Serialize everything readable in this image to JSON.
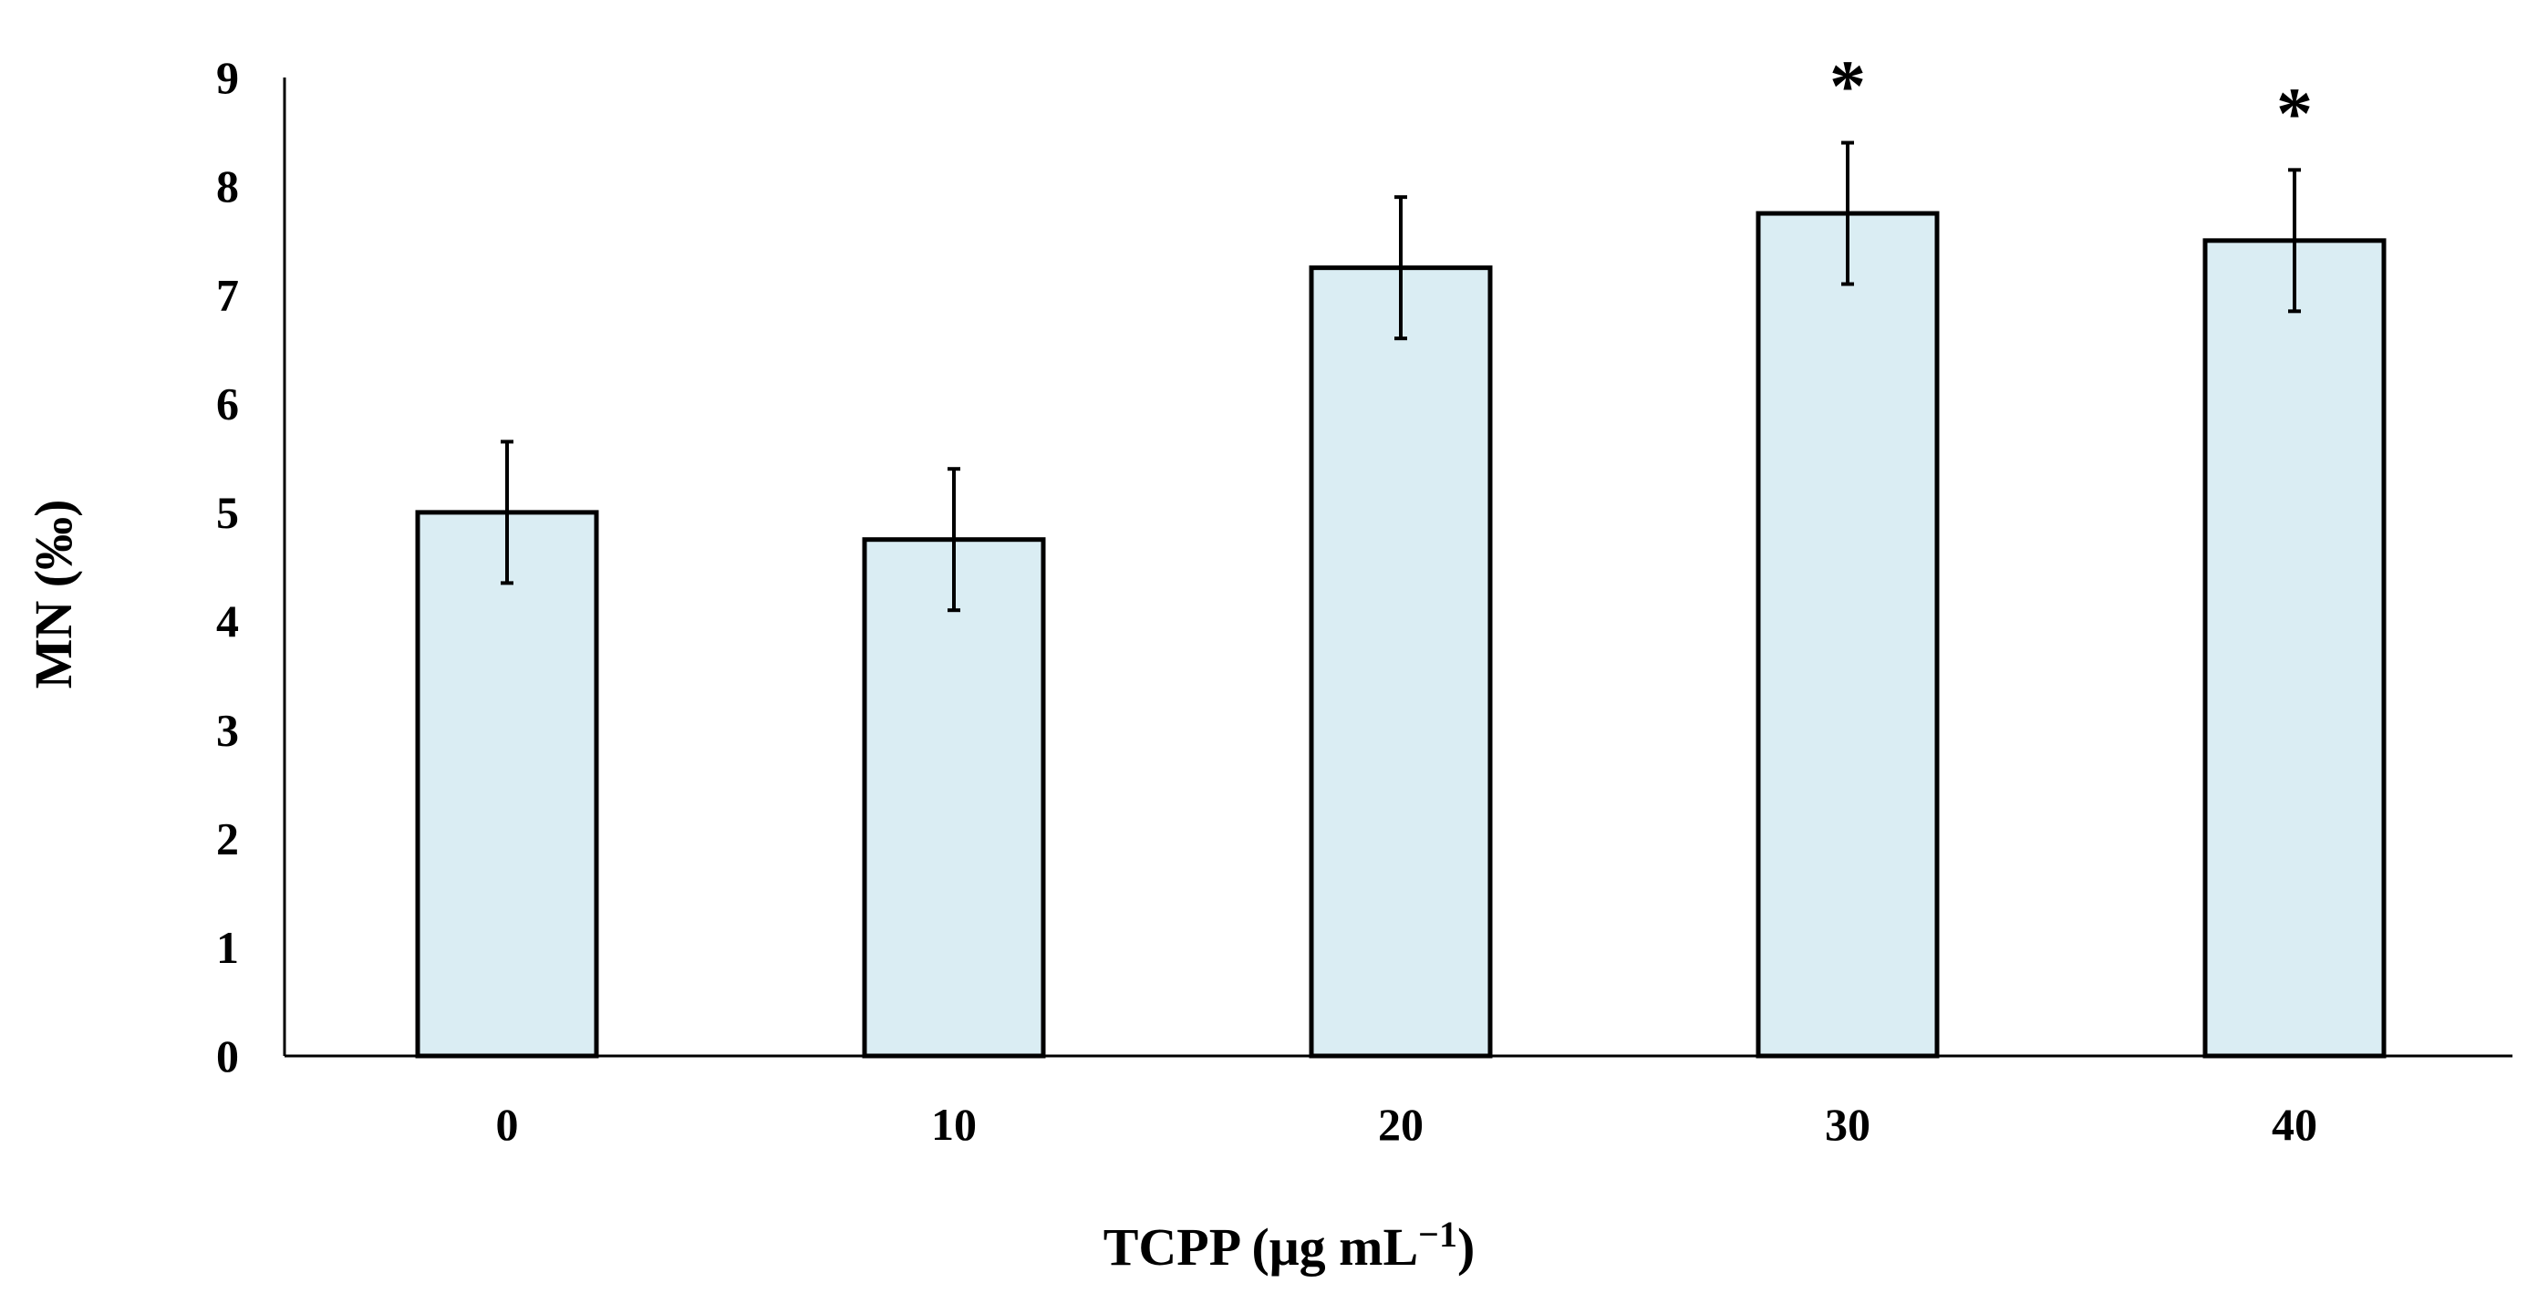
{
  "chart_data": {
    "type": "bar",
    "title": "",
    "xlabel": "TCPP (μg mL",
    "xlabel_superscript": "−1",
    "xlabel_close": ")",
    "ylabel": "MN (‰)",
    "categories": [
      "0",
      "10",
      "20",
      "30",
      "40"
    ],
    "values": [
      5.0,
      4.75,
      7.25,
      7.75,
      7.5
    ],
    "error": [
      0.65,
      0.65,
      0.65,
      0.65,
      0.65
    ],
    "significance": [
      "",
      "",
      "",
      "*",
      "*"
    ],
    "ylim": [
      0,
      9
    ],
    "yticks": [
      "0",
      "1",
      "2",
      "3",
      "4",
      "5",
      "6",
      "7",
      "8",
      "9"
    ],
    "grid": false,
    "bar_color": "#daedf3",
    "edge_color": "#000000"
  }
}
